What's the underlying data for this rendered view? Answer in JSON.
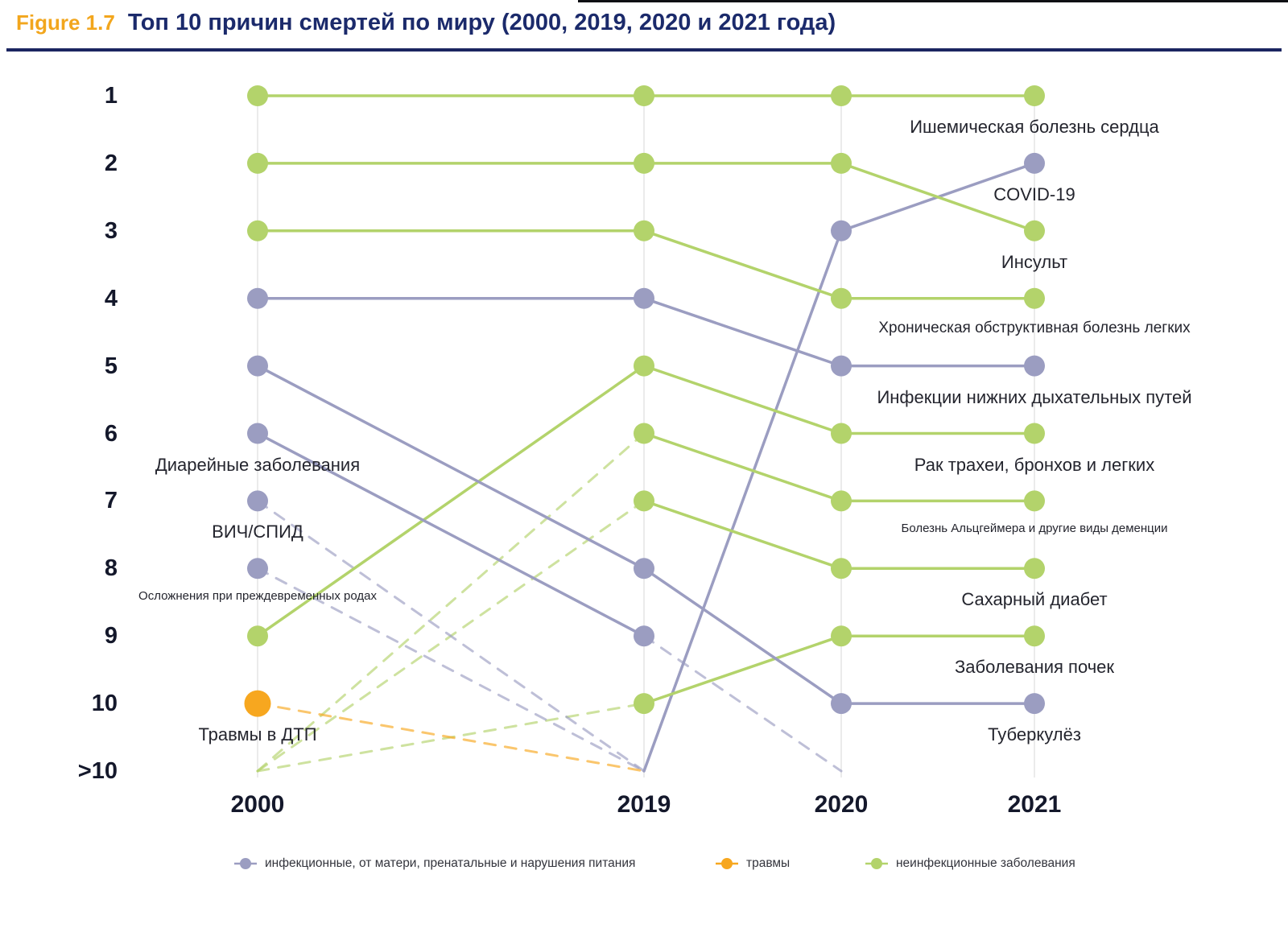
{
  "figure": {
    "tag": "Figure 1.7",
    "title": "Топ 10 причин смертей по миру (2000, 2019, 2020 и 2021 года)"
  },
  "colors": {
    "figure_tag": "#f2a61d",
    "title": "#1b2a6b",
    "title_rule": "#1b2560",
    "infectious": "#9b9dc1",
    "injuries": "#f7a71f",
    "noncommunicable": "#b3d36b"
  },
  "chart_data": {
    "type": "line",
    "subtype": "bump-rank-chart",
    "title": "Топ 10 причин смертей по миру (2000, 2019, 2020 и 2021 года)",
    "x": [
      2000,
      2019,
      2020,
      2021
    ],
    "x_labels": [
      "2000",
      "2019",
      "2020",
      "2021"
    ],
    "y_axis": {
      "label": "rank",
      "ticks": [
        "1",
        "2",
        "3",
        "4",
        "5",
        "6",
        "7",
        "8",
        "9",
        "10",
        ">10"
      ],
      "inverted": true
    },
    "grid": "vertical-only",
    "legend_position": "bottom",
    "categories": [
      {
        "id": "infectious",
        "label": "инфекционные, от матери, пренатальные и нарушения питания",
        "color": "#9b9dc1"
      },
      {
        "id": "injuries",
        "label": "травмы",
        "color": "#f7a71f"
      },
      {
        "id": "noncommunicable",
        "label": "неинфекционные заболевания",
        "color": "#b3d36b"
      }
    ],
    "series": [
      {
        "id": "ihd",
        "name": "Ишемическая болезнь сердца",
        "category": "noncommunicable",
        "ranks": [
          1,
          1,
          1,
          1
        ],
        "label_at": {
          "year": 2021,
          "side": "right"
        }
      },
      {
        "id": "covid19",
        "name": "COVID-19",
        "category": "infectious",
        "ranks": [
          null,
          null,
          3,
          2
        ],
        "label_at": {
          "year": 2021,
          "side": "right"
        },
        "solid_entry": true
      },
      {
        "id": "stroke",
        "name": "Инсульт",
        "category": "noncommunicable",
        "ranks": [
          2,
          2,
          2,
          3
        ],
        "label_at": {
          "year": 2021,
          "side": "right"
        }
      },
      {
        "id": "copd",
        "name": "Хроническая обструктивная болезнь легких",
        "category": "noncommunicable",
        "ranks": [
          3,
          3,
          4,
          4
        ],
        "label_at": {
          "year": 2021,
          "side": "right"
        },
        "label_size": "medium"
      },
      {
        "id": "lri",
        "name": "Инфекции нижних дыхательных путей",
        "category": "infectious",
        "ranks": [
          4,
          4,
          5,
          5
        ],
        "label_at": {
          "year": 2021,
          "side": "right"
        }
      },
      {
        "id": "lung-cancer",
        "name": "Рак трахеи, бронхов и легких",
        "category": "noncommunicable",
        "ranks": [
          9,
          5,
          6,
          6
        ],
        "label_at": {
          "year": 2021,
          "side": "right"
        }
      },
      {
        "id": "alzheimer",
        "name": "Болезнь Альцгеймера и другие виды деменции",
        "category": "noncommunicable",
        "ranks": [
          null,
          6,
          7,
          7
        ],
        "label_at": {
          "year": 2021,
          "side": "right"
        },
        "label_size": "small"
      },
      {
        "id": "diabetes",
        "name": "Сахарный диабет",
        "category": "noncommunicable",
        "ranks": [
          null,
          7,
          8,
          8
        ],
        "label_at": {
          "year": 2021,
          "side": "right"
        }
      },
      {
        "id": "kidney",
        "name": "Заболевания почек",
        "category": "noncommunicable",
        "ranks": [
          null,
          10,
          9,
          9
        ],
        "label_at": {
          "year": 2021,
          "side": "right"
        }
      },
      {
        "id": "tb",
        "name": "Туберкулёз",
        "category": "infectious",
        "ranks": [
          5,
          8,
          10,
          10
        ],
        "label_at": {
          "year": 2021,
          "side": "right"
        }
      },
      {
        "id": "diarrheal",
        "name": "Диарейные заболевания",
        "category": "infectious",
        "ranks": [
          6,
          9,
          null,
          null
        ],
        "label_at": {
          "year": 2000,
          "side": "left"
        }
      },
      {
        "id": "hiv",
        "name": "ВИЧ/СПИД",
        "category": "infectious",
        "ranks": [
          7,
          null,
          null,
          null
        ],
        "label_at": {
          "year": 2000,
          "side": "left"
        }
      },
      {
        "id": "preterm",
        "name": "Осложнения при преждевременных родах",
        "category": "infectious",
        "ranks": [
          8,
          null,
          null,
          null
        ],
        "label_at": {
          "year": 2000,
          "side": "left"
        },
        "label_size": "small"
      },
      {
        "id": "road-injuries",
        "name": "Травмы в ДТП",
        "category": "injuries",
        "ranks": [
          10,
          null,
          null,
          null
        ],
        "label_at": {
          "year": 2000,
          "side": "left"
        },
        "marker_size": "large"
      }
    ]
  }
}
